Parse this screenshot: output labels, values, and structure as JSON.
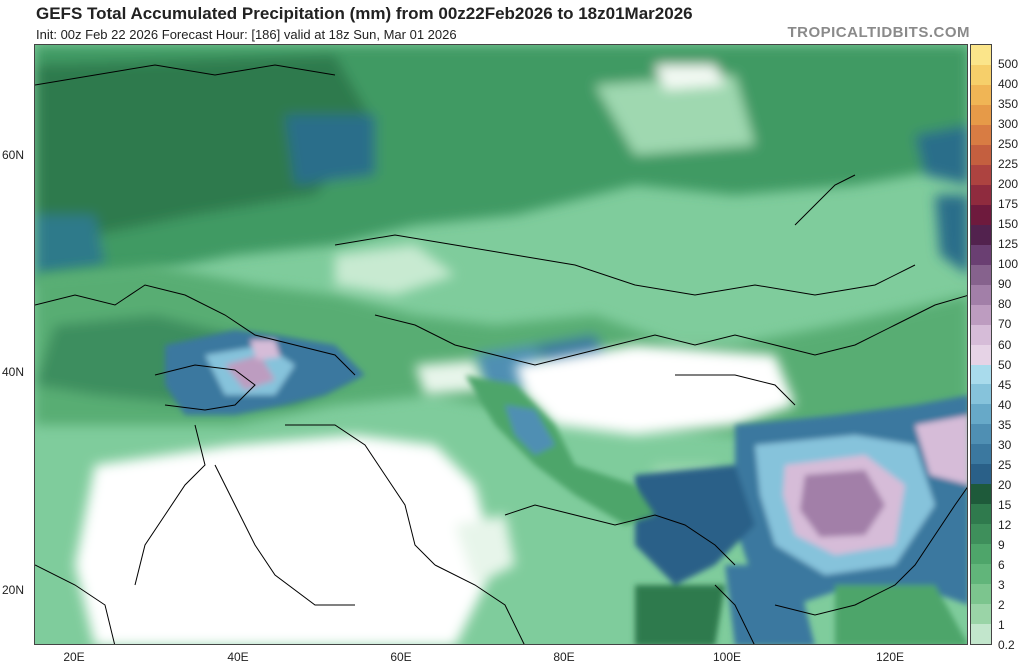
{
  "header": {
    "title": "GEFS Total Accumulated Precipitation (mm) from 00z22Feb2026 to 18z01Mar2026",
    "subtitle": "Init: 00z Feb 22 2026   Forecast Hour: [186]   valid at 18z Sun, Mar 01 2026",
    "source": "TROPICALTIDBITS.COM"
  },
  "map": {
    "lat_labels": [
      "60N",
      "40N",
      "20N"
    ],
    "lon_labels": [
      "20E",
      "40E",
      "60E",
      "80E",
      "100E",
      "120E"
    ]
  },
  "legend": {
    "labels": [
      "500",
      "400",
      "350",
      "300",
      "250",
      "225",
      "200",
      "175",
      "150",
      "125",
      "100",
      "90",
      "80",
      "70",
      "60",
      "50",
      "45",
      "40",
      "35",
      "30",
      "25",
      "20",
      "15",
      "12",
      "9",
      "6",
      "3",
      "2",
      "1",
      "0.2"
    ],
    "colors": [
      "#fbe58a",
      "#f6cf6a",
      "#f0b555",
      "#e69a48",
      "#d87c43",
      "#c45f3f",
      "#ad4340",
      "#8f2b3e",
      "#6e1a3d",
      "#52224e",
      "#6a3f72",
      "#86628d",
      "#a27fa8",
      "#bd9cc0",
      "#d6bcd8",
      "#e6d3e6",
      "#a9dbec",
      "#86c3db",
      "#67a9c8",
      "#4f8fb3",
      "#3b789f",
      "#2a6088",
      "#1e5a3a",
      "#2f7a4d",
      "#3e8f5b",
      "#4ea56a",
      "#61b57a",
      "#7cc58e",
      "#9ad4a7",
      "#c2e6cc"
    ]
  }
}
